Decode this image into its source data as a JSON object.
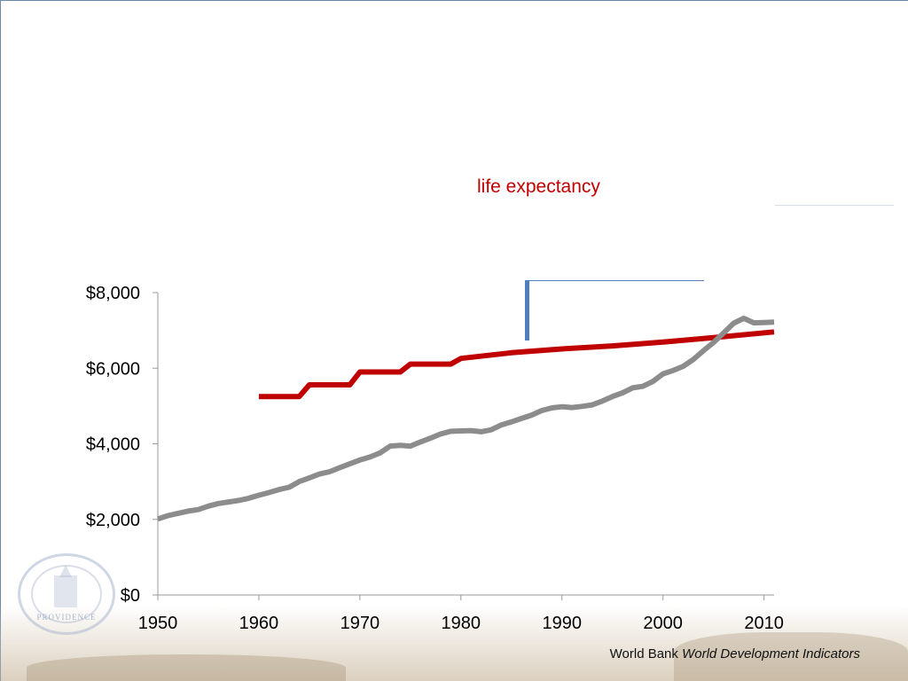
{
  "series_label": "life expectancy",
  "source": {
    "prefix": "World Bank",
    "title": "World Development Indicators"
  },
  "seal": {
    "word": "PROVIDENCE"
  },
  "colors": {
    "gdp_line": "#8c8c8c",
    "life_line": "#c00000",
    "callout": "#4f7fc0",
    "axis": "#9a9a9a"
  },
  "chart_data": {
    "type": "line",
    "x_ticks": [
      "1950",
      "1960",
      "1970",
      "1980",
      "1990",
      "2000",
      "2010"
    ],
    "y_ticks": [
      "$0",
      "$2,000",
      "$4,000",
      "$6,000",
      "$8,000"
    ],
    "xlim": [
      1950,
      2011
    ],
    "ylim": [
      0,
      8000
    ],
    "series": [
      {
        "name": "life expectancy",
        "color": "#c00000",
        "points": [
          [
            1960,
            5250
          ],
          [
            1964,
            5250
          ],
          [
            1965,
            5560
          ],
          [
            1969,
            5560
          ],
          [
            1970,
            5900
          ],
          [
            1974,
            5900
          ],
          [
            1975,
            6110
          ],
          [
            1979,
            6110
          ],
          [
            1980,
            6260
          ],
          [
            1985,
            6410
          ],
          [
            1990,
            6510
          ],
          [
            1995,
            6590
          ],
          [
            2000,
            6690
          ],
          [
            2005,
            6810
          ],
          [
            2011,
            6960
          ]
        ]
      },
      {
        "name": "",
        "color": "#8c8c8c",
        "points": [
          [
            1950,
            2010
          ],
          [
            1951,
            2100
          ],
          [
            1952,
            2160
          ],
          [
            1953,
            2220
          ],
          [
            1954,
            2260
          ],
          [
            1955,
            2350
          ],
          [
            1956,
            2420
          ],
          [
            1957,
            2460
          ],
          [
            1958,
            2500
          ],
          [
            1959,
            2560
          ],
          [
            1960,
            2640
          ],
          [
            1961,
            2710
          ],
          [
            1962,
            2790
          ],
          [
            1963,
            2850
          ],
          [
            1964,
            3000
          ],
          [
            1965,
            3100
          ],
          [
            1966,
            3200
          ],
          [
            1967,
            3260
          ],
          [
            1968,
            3370
          ],
          [
            1969,
            3470
          ],
          [
            1970,
            3570
          ],
          [
            1971,
            3650
          ],
          [
            1972,
            3760
          ],
          [
            1973,
            3940
          ],
          [
            1974,
            3960
          ],
          [
            1975,
            3940
          ],
          [
            1976,
            4050
          ],
          [
            1977,
            4150
          ],
          [
            1978,
            4260
          ],
          [
            1979,
            4330
          ],
          [
            1980,
            4340
          ],
          [
            1981,
            4350
          ],
          [
            1982,
            4320
          ],
          [
            1983,
            4370
          ],
          [
            1984,
            4500
          ],
          [
            1985,
            4580
          ],
          [
            1986,
            4670
          ],
          [
            1987,
            4760
          ],
          [
            1988,
            4880
          ],
          [
            1989,
            4950
          ],
          [
            1990,
            4980
          ],
          [
            1991,
            4960
          ],
          [
            1992,
            4990
          ],
          [
            1993,
            5030
          ],
          [
            1994,
            5130
          ],
          [
            1995,
            5250
          ],
          [
            1996,
            5350
          ],
          [
            1997,
            5480
          ],
          [
            1998,
            5520
          ],
          [
            1999,
            5650
          ],
          [
            2000,
            5850
          ],
          [
            2001,
            5940
          ],
          [
            2002,
            6050
          ],
          [
            2003,
            6230
          ],
          [
            2004,
            6460
          ],
          [
            2005,
            6680
          ],
          [
            2006,
            6930
          ],
          [
            2007,
            7190
          ],
          [
            2008,
            7320
          ],
          [
            2009,
            7200
          ],
          [
            2010,
            7210
          ],
          [
            2011,
            7220
          ]
        ]
      }
    ]
  }
}
